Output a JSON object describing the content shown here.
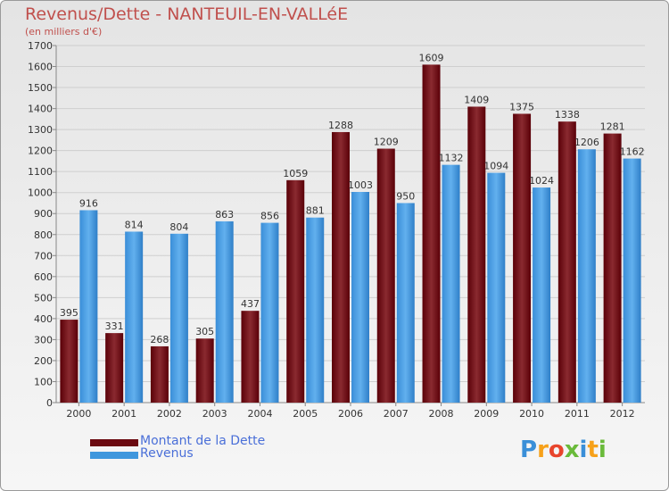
{
  "title": "Revenus/Dette - NANTEUIL-EN-VALLéE",
  "subtitle": "(en milliers d'€)",
  "legend": [
    {
      "label": "Montant de la Dette",
      "color": "#6b0a10"
    },
    {
      "label": "Revenus",
      "color": "#3f97dd"
    }
  ],
  "logo": {
    "text": "Proxiti",
    "colors": [
      "#3a8fd8",
      "#f7a11a",
      "#e8452c",
      "#6aba3a",
      "#3a8fd8",
      "#f7a11a",
      "#6aba3a"
    ]
  },
  "chart_data": {
    "type": "bar",
    "categories": [
      "2000",
      "2001",
      "2002",
      "2003",
      "2004",
      "2005",
      "2006",
      "2007",
      "2008",
      "2009",
      "2010",
      "2011",
      "2012"
    ],
    "series": [
      {
        "name": "Montant de la Dette",
        "color": "#6b0a10",
        "values": [
          395,
          331,
          268,
          305,
          437,
          1059,
          1288,
          1209,
          1609,
          1409,
          1375,
          1338,
          1281
        ]
      },
      {
        "name": "Revenus",
        "color": "#3f97dd",
        "values": [
          916,
          814,
          804,
          863,
          856,
          881,
          1003,
          950,
          1132,
          1094,
          1024,
          1206,
          1162
        ]
      }
    ],
    "ylim": [
      0,
      1700
    ],
    "yticks": [
      0,
      100,
      200,
      300,
      400,
      500,
      600,
      700,
      800,
      900,
      1000,
      1100,
      1200,
      1300,
      1400,
      1500,
      1600,
      1700
    ],
    "grid": true,
    "legend_position": "bottom-left"
  }
}
